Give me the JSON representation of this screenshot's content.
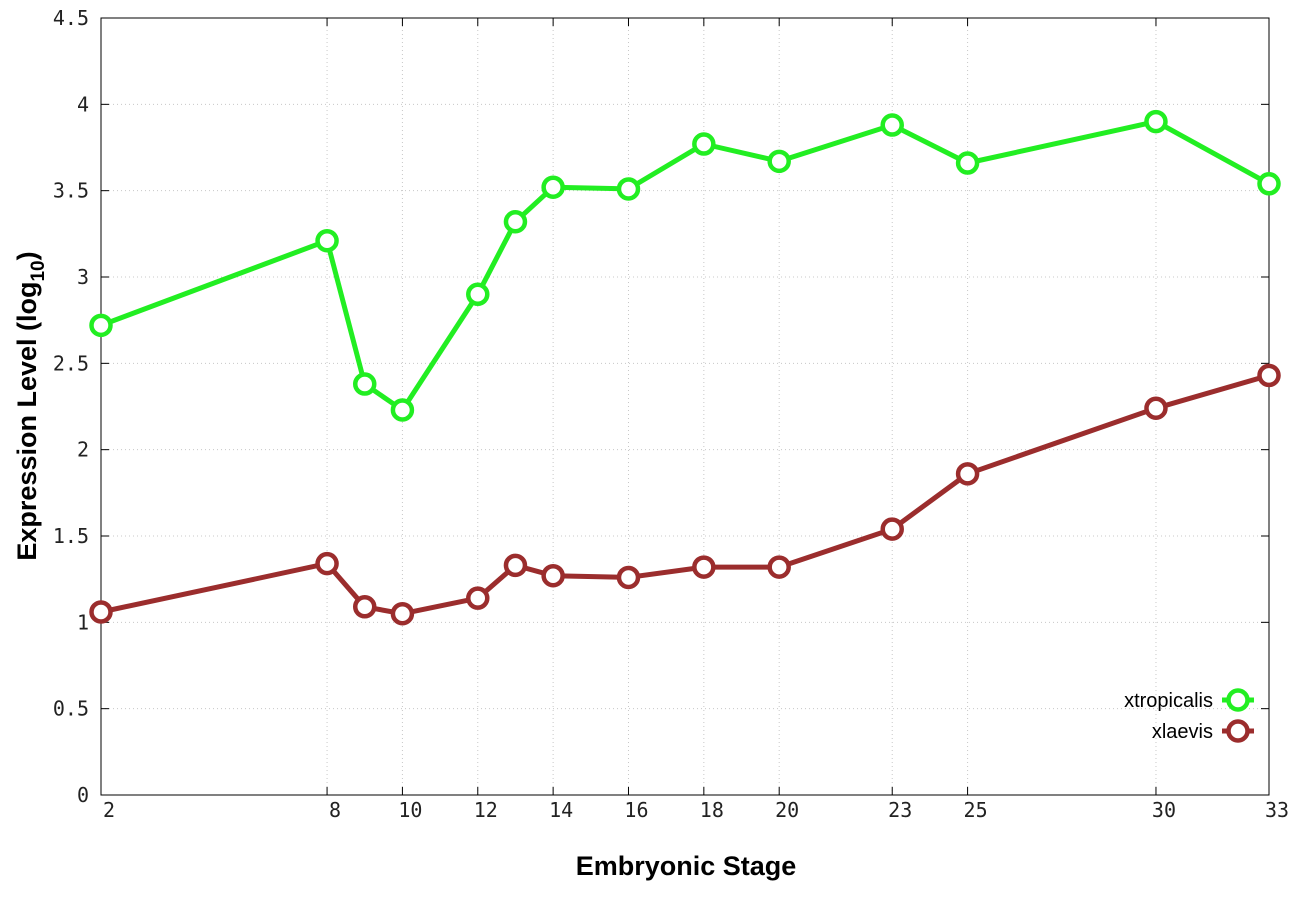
{
  "chart_data": {
    "type": "line",
    "xlabel": "Embryonic Stage",
    "ylabel": "Expression Level (log",
    "ylabel_sub": "10",
    "ylabel_close": ")",
    "x": [
      2,
      8,
      9,
      10,
      12,
      13,
      14,
      16,
      18,
      20,
      23,
      25,
      30,
      33
    ],
    "x_ticks": [
      "2",
      "8",
      "10",
      "12",
      "14",
      "16",
      "18",
      "20",
      "23",
      "25",
      "30",
      "33"
    ],
    "y_ticks": [
      "0",
      "0.5",
      "1",
      "1.5",
      "2",
      "2.5",
      "3",
      "3.5",
      "4",
      "4.5"
    ],
    "xlim": [
      2,
      33
    ],
    "ylim": [
      0,
      4.5
    ],
    "grid": true,
    "legend_position": "bottom-right",
    "series": [
      {
        "name": "xtropicalis",
        "color": "#22ee22",
        "values": [
          2.72,
          3.21,
          2.38,
          2.23,
          2.9,
          3.32,
          3.52,
          3.51,
          3.77,
          3.67,
          3.88,
          3.66,
          3.9,
          3.54
        ]
      },
      {
        "name": "xlaevis",
        "color": "#9b2d2d",
        "values": [
          1.06,
          1.34,
          1.09,
          1.05,
          1.14,
          1.33,
          1.27,
          1.26,
          1.32,
          1.32,
          1.54,
          1.86,
          2.24,
          2.43
        ]
      }
    ]
  }
}
